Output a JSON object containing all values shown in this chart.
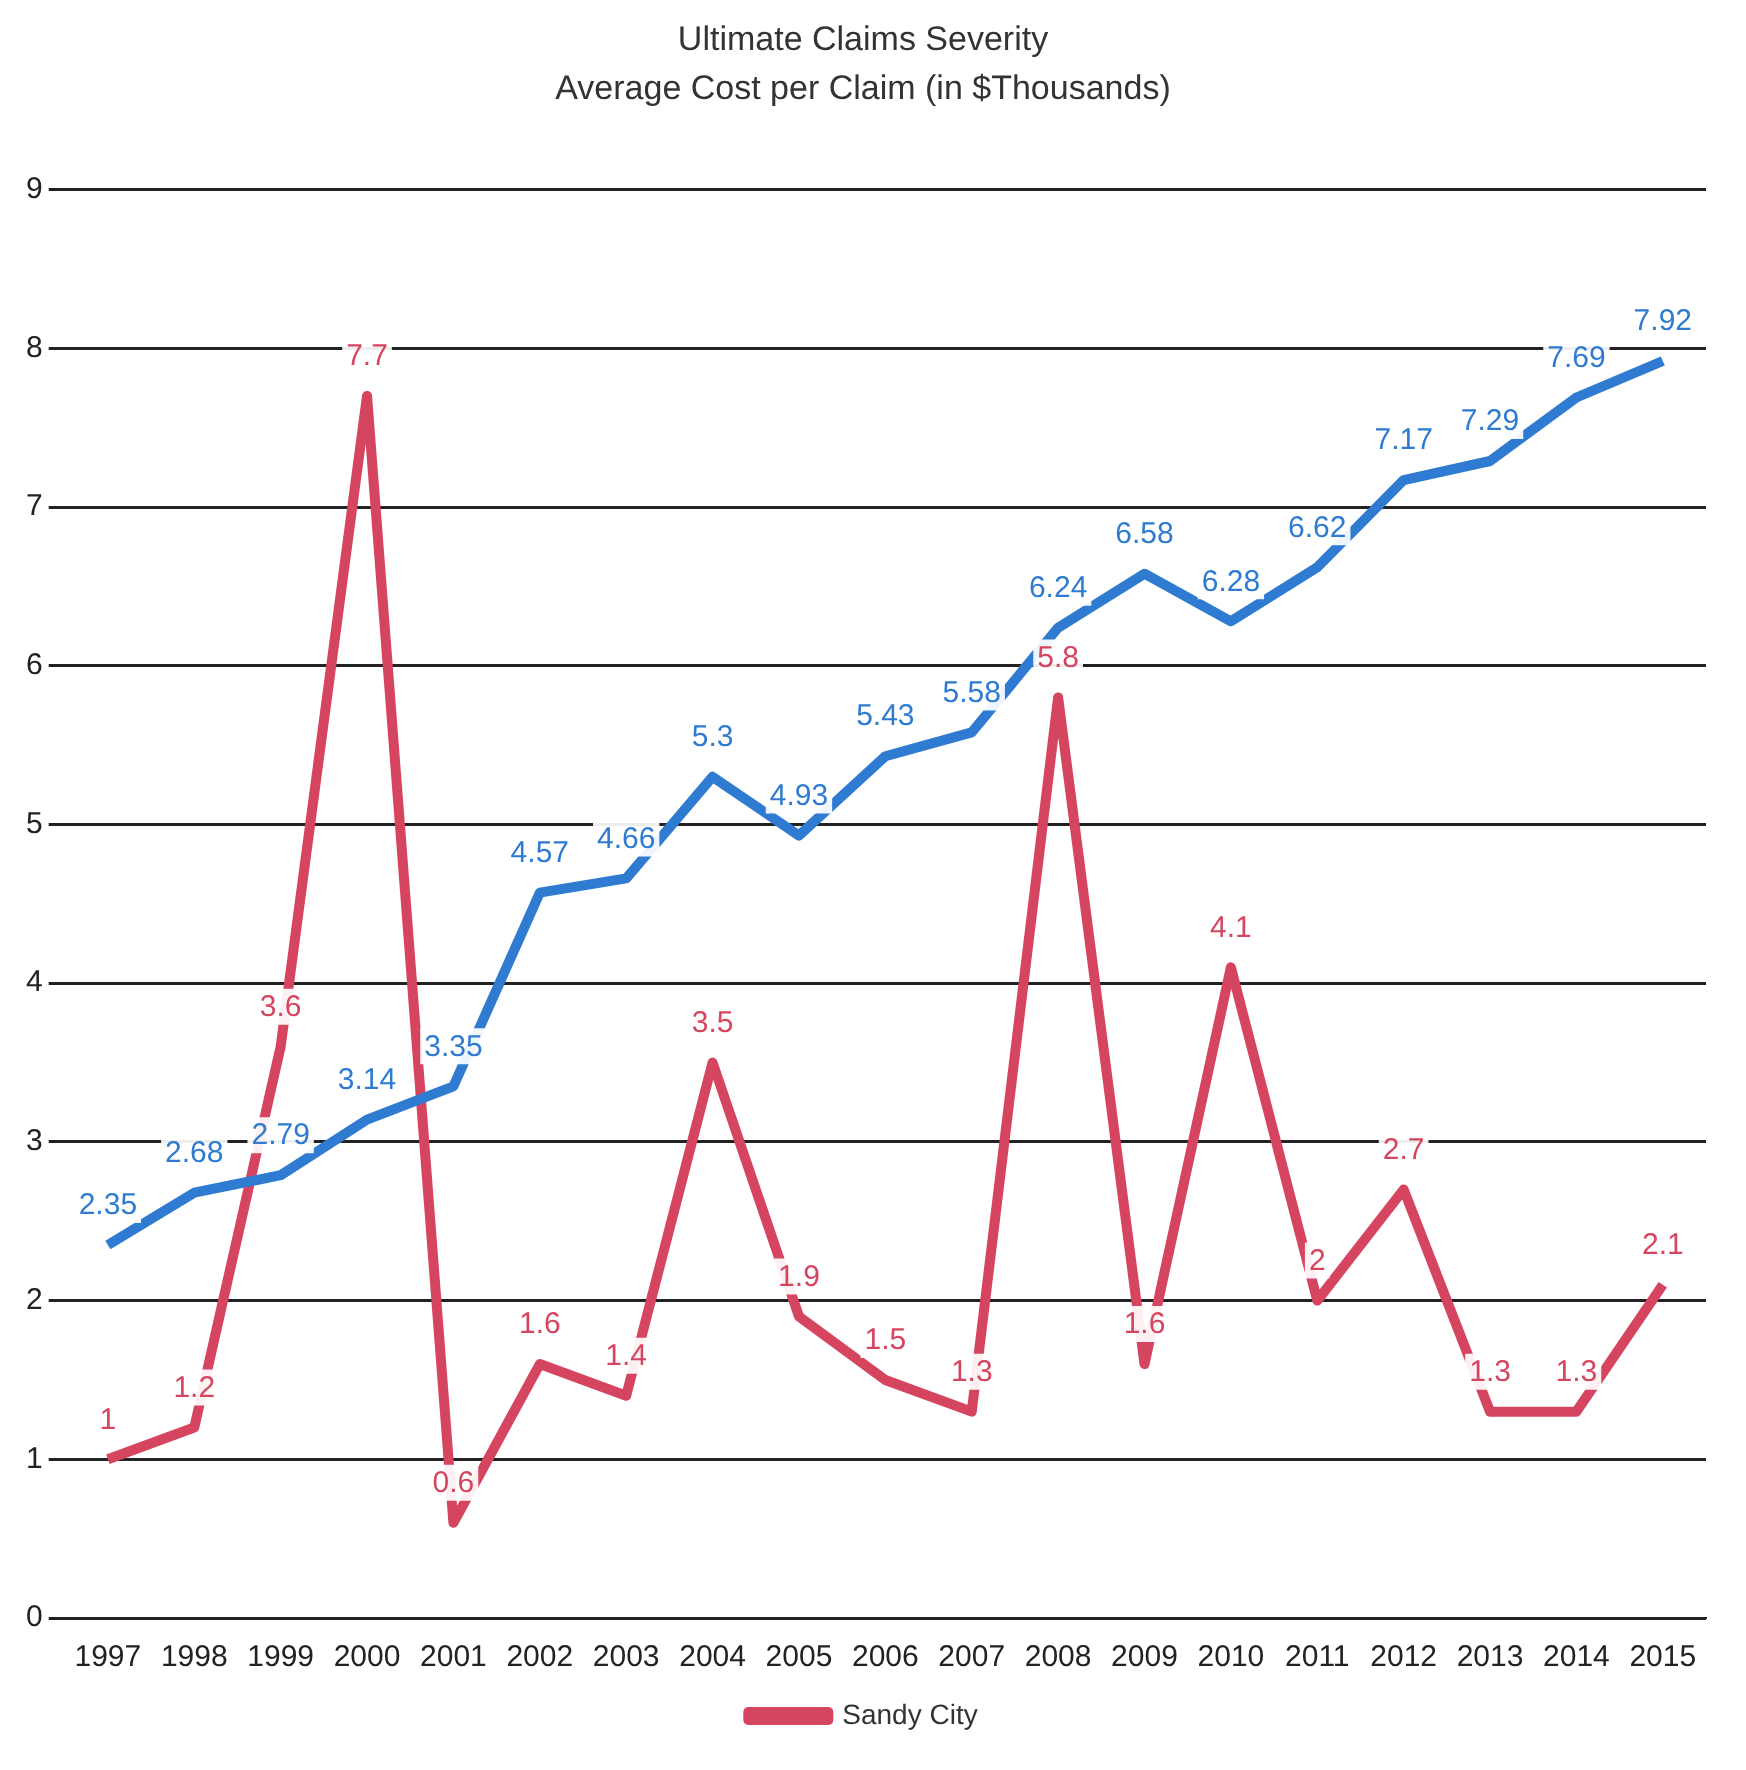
{
  "chart_data": {
    "type": "line",
    "title": "Ultimate Claims Severity",
    "subtitle": "Average Cost per Claim (in $Thousands)",
    "categories": [
      "1997",
      "1998",
      "1999",
      "2000",
      "2001",
      "2002",
      "2003",
      "2004",
      "2005",
      "2006",
      "2007",
      "2008",
      "2009",
      "2010",
      "2011",
      "2012",
      "2013",
      "2014",
      "2015"
    ],
    "series": [
      {
        "color": "#2e7bd1",
        "values": [
          2.35,
          2.68,
          2.79,
          3.14,
          3.35,
          4.57,
          4.66,
          5.3,
          4.93,
          5.43,
          5.58,
          6.24,
          6.58,
          6.28,
          6.62,
          7.17,
          7.29,
          7.69,
          7.92
        ]
      },
      {
        "name": "Sandy City",
        "color": "#d6455f",
        "values": [
          1,
          1.2,
          3.6,
          7.7,
          0.6,
          1.6,
          1.4,
          3.5,
          1.9,
          1.5,
          1.3,
          5.8,
          1.6,
          4.1,
          2,
          2.7,
          1.3,
          1.3,
          2.1
        ]
      }
    ],
    "ylim": [
      0,
      9
    ],
    "yticks": [
      0,
      1,
      2,
      3,
      4,
      5,
      6,
      7,
      8,
      9
    ],
    "grid": "y",
    "legend": "bottom",
    "data_labels": true,
    "marker": "none",
    "line_style": "solid"
  }
}
